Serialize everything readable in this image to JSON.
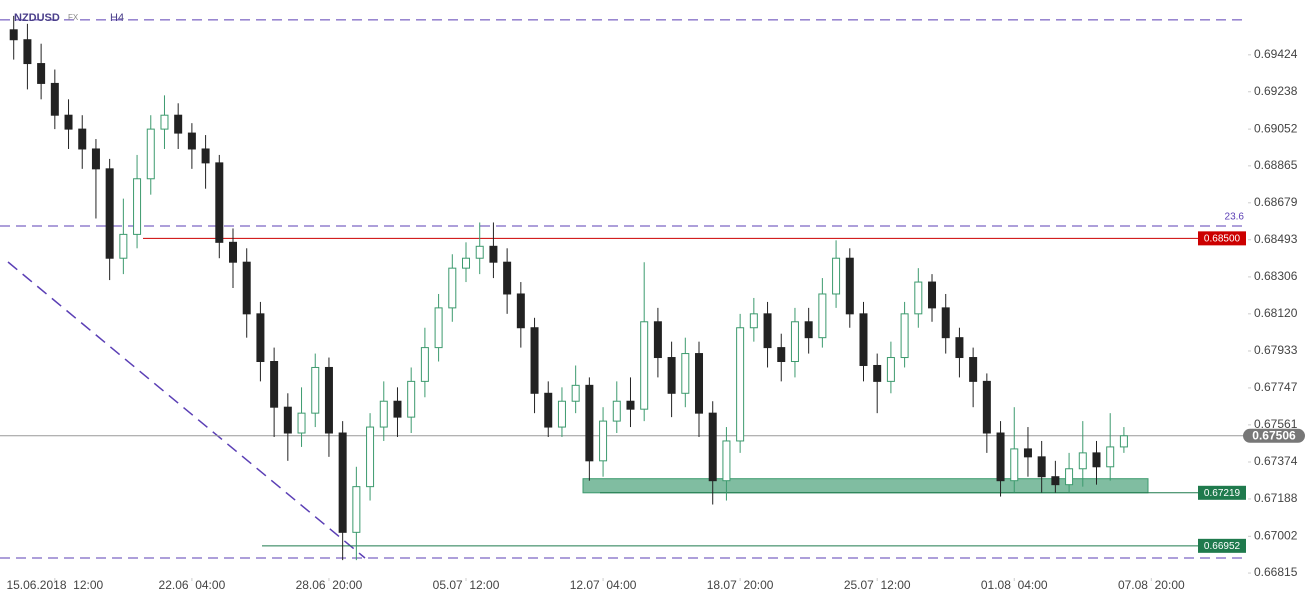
{
  "chart_data": {
    "type": "candlestick",
    "title": "NZDUSD",
    "market": "FX",
    "timeframe": "H4",
    "x": [
      0,
      1,
      2,
      3,
      4,
      5,
      6,
      7,
      8,
      9,
      10,
      11,
      12,
      13,
      14,
      15,
      16,
      17,
      18,
      19,
      20,
      21,
      22,
      23,
      24,
      25,
      26,
      27,
      28,
      29,
      30,
      31,
      32,
      33,
      34,
      35,
      36,
      37,
      38,
      39,
      40,
      41,
      42,
      43,
      44,
      45,
      46,
      47,
      48,
      49,
      50,
      51,
      52,
      53,
      54,
      55,
      56,
      57,
      58,
      59,
      60,
      61,
      62,
      63,
      64,
      65,
      66,
      67,
      68,
      69,
      70,
      71,
      72,
      73,
      74,
      75,
      76,
      77,
      78,
      79,
      80,
      81
    ],
    "open": [
      0.6955,
      0.695,
      0.6938,
      0.6928,
      0.6912,
      0.6905,
      0.6895,
      0.6885,
      0.684,
      0.6852,
      0.688,
      0.6905,
      0.6912,
      0.6903,
      0.6895,
      0.6888,
      0.6848,
      0.6838,
      0.6812,
      0.6788,
      0.6765,
      0.6752,
      0.6762,
      0.6785,
      0.6752,
      0.6702,
      0.6725,
      0.6755,
      0.6768,
      0.676,
      0.6778,
      0.6795,
      0.6815,
      0.6835,
      0.684,
      0.6846,
      0.6838,
      0.6822,
      0.6805,
      0.6772,
      0.6755,
      0.6768,
      0.6776,
      0.6738,
      0.6758,
      0.6768,
      0.6764,
      0.6808,
      0.679,
      0.6772,
      0.6792,
      0.6762,
      0.6728,
      0.6748,
      0.6805,
      0.6812,
      0.6795,
      0.6788,
      0.6808,
      0.68,
      0.6822,
      0.684,
      0.6812,
      0.6786,
      0.6778,
      0.679,
      0.6812,
      0.6828,
      0.6815,
      0.68,
      0.679,
      0.6778,
      0.6752,
      0.6728,
      0.6744,
      0.674,
      0.673,
      0.6726,
      0.6734,
      0.6742,
      0.6735,
      0.6745
    ],
    "high": [
      0.6962,
      0.6958,
      0.6948,
      0.6935,
      0.692,
      0.6912,
      0.69,
      0.689,
      0.687,
      0.6892,
      0.6912,
      0.6922,
      0.6918,
      0.6908,
      0.6902,
      0.6892,
      0.6855,
      0.6845,
      0.6818,
      0.6795,
      0.6772,
      0.6775,
      0.6792,
      0.679,
      0.6758,
      0.6735,
      0.6762,
      0.6778,
      0.6775,
      0.6785,
      0.6805,
      0.6822,
      0.6842,
      0.6848,
      0.6858,
      0.6858,
      0.6845,
      0.6828,
      0.681,
      0.6778,
      0.6775,
      0.6786,
      0.678,
      0.6765,
      0.6778,
      0.678,
      0.6838,
      0.6815,
      0.6798,
      0.68,
      0.6798,
      0.6768,
      0.6755,
      0.6812,
      0.682,
      0.6818,
      0.6802,
      0.6815,
      0.6815,
      0.683,
      0.6849,
      0.6845,
      0.6818,
      0.6792,
      0.6798,
      0.6818,
      0.6835,
      0.6832,
      0.6822,
      0.6805,
      0.6795,
      0.6782,
      0.6758,
      0.6765,
      0.6755,
      0.6748,
      0.6738,
      0.6742,
      0.6758,
      0.6748,
      0.6762,
      0.6755
    ],
    "low": [
      0.694,
      0.6925,
      0.692,
      0.6905,
      0.6895,
      0.6885,
      0.686,
      0.6829,
      0.6832,
      0.6845,
      0.6872,
      0.6895,
      0.6895,
      0.6885,
      0.6875,
      0.684,
      0.6825,
      0.68,
      0.6778,
      0.675,
      0.6738,
      0.6745,
      0.6755,
      0.674,
      0.6688,
      0.6688,
      0.6718,
      0.6748,
      0.675,
      0.6752,
      0.677,
      0.6788,
      0.6808,
      0.6828,
      0.6832,
      0.683,
      0.6812,
      0.6795,
      0.6762,
      0.675,
      0.675,
      0.6762,
      0.6728,
      0.673,
      0.6752,
      0.6755,
      0.6758,
      0.678,
      0.676,
      0.6765,
      0.675,
      0.6716,
      0.6718,
      0.6742,
      0.6798,
      0.6785,
      0.6778,
      0.678,
      0.6792,
      0.6795,
      0.6815,
      0.6805,
      0.6778,
      0.6762,
      0.6772,
      0.6785,
      0.6805,
      0.6808,
      0.6792,
      0.678,
      0.6765,
      0.6742,
      0.672,
      0.6722,
      0.673,
      0.6722,
      0.6722,
      0.6722,
      0.6725,
      0.6726,
      0.6728,
      0.6742
    ],
    "close": [
      0.695,
      0.6938,
      0.6928,
      0.6912,
      0.6905,
      0.6895,
      0.6885,
      0.684,
      0.6852,
      0.688,
      0.6905,
      0.6912,
      0.6903,
      0.6895,
      0.6888,
      0.6848,
      0.6838,
      0.6812,
      0.6788,
      0.6765,
      0.6752,
      0.6762,
      0.6785,
      0.6752,
      0.6702,
      0.6725,
      0.6755,
      0.6768,
      0.676,
      0.6778,
      0.6795,
      0.6815,
      0.6835,
      0.684,
      0.6846,
      0.6838,
      0.6822,
      0.6805,
      0.6772,
      0.6755,
      0.6768,
      0.6776,
      0.6738,
      0.6758,
      0.6768,
      0.6764,
      0.6808,
      0.679,
      0.6772,
      0.6792,
      0.6762,
      0.6728,
      0.6748,
      0.6805,
      0.6812,
      0.6795,
      0.6788,
      0.6808,
      0.68,
      0.6822,
      0.684,
      0.6812,
      0.6786,
      0.6778,
      0.679,
      0.6812,
      0.6828,
      0.6815,
      0.68,
      0.679,
      0.6778,
      0.6752,
      0.6728,
      0.6744,
      0.674,
      0.673,
      0.6726,
      0.6734,
      0.6742,
      0.6735,
      0.6745,
      0.67506
    ],
    "up_color": "#3c9a6e",
    "down_color": "#222222",
    "xlim": [
      -1,
      90.2
    ],
    "xticks": [
      {
        "value": 3,
        "label": "15.06.2018  12:00"
      },
      {
        "value": 13,
        "label": "22.06  04:00"
      },
      {
        "value": 23,
        "label": "28.06  20:00"
      },
      {
        "value": 33,
        "label": "05.07  12:00"
      },
      {
        "value": 43,
        "label": "12.07  04:00"
      },
      {
        "value": 53,
        "label": "18.07  20:00"
      },
      {
        "value": 63,
        "label": "25.07  12:00"
      },
      {
        "value": 73,
        "label": "01.08  04:00"
      },
      {
        "value": 83,
        "label": "07.08  20:00"
      }
    ],
    "ylim": [
      0.6678,
      0.697
    ],
    "yticks": [
      0.69424,
      0.69238,
      {
        "value": 0.6905,
        "label": "0.69052"
      },
      0.68865,
      0.68679,
      0.68493,
      0.68306,
      {
        "value": 0.6812,
        "label": "0.68120"
      },
      0.67933,
      0.67747,
      0.67561,
      0.67374,
      0.67188,
      {
        "value": 0.67,
        "label": "0.67002"
      },
      0.66815
    ],
    "dashed_levels": [
      0.696,
      0.68562,
      0.66891
    ],
    "dashed_color": "#5b3fb5",
    "fib_label": {
      "value": 0.68562,
      "label": "23.6"
    },
    "resistance": {
      "value": 0.685,
      "label": "0.68500",
      "color": "#cc0000"
    },
    "support_zone": {
      "low": 0.67219,
      "high": 0.6729,
      "label": "0.67219",
      "color": "#3c9a6e"
    },
    "support_line": {
      "value": 0.66952,
      "label": "0.66952",
      "color": "#1f7a4d"
    },
    "current_price": {
      "value": 0.67506,
      "label": "0.67506",
      "color": "#777777"
    }
  }
}
